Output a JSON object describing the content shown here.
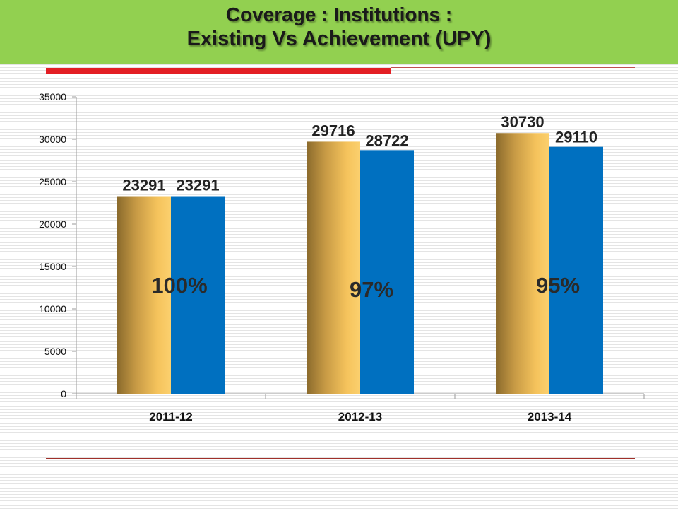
{
  "slide": {
    "title_line1": "Coverage : Institutions :",
    "title_line2": "Existing  Vs Achievement (UPY)",
    "header_color": "#92d050",
    "accent_color": "#e31e24"
  },
  "chart_data": {
    "type": "bar",
    "categories": [
      "2011-12",
      "2012-13",
      "2013-14"
    ],
    "series": [
      {
        "values": [
          23291,
          29716,
          30730
        ],
        "color": "#f5c05a"
      },
      {
        "values": [
          23291,
          28722,
          29110
        ],
        "color": "#0070c0"
      }
    ],
    "data_labels": [
      [
        "23291",
        "29716",
        "30730"
      ],
      [
        "23291",
        "28722",
        "29110"
      ]
    ],
    "annotations": [
      "100%",
      "97%",
      "95%"
    ],
    "ylim": [
      0,
      35000
    ],
    "yticks": [
      0,
      5000,
      10000,
      15000,
      20000,
      25000,
      30000,
      35000
    ],
    "xlabel": "",
    "ylabel": "",
    "legend": "none",
    "grid": false
  }
}
